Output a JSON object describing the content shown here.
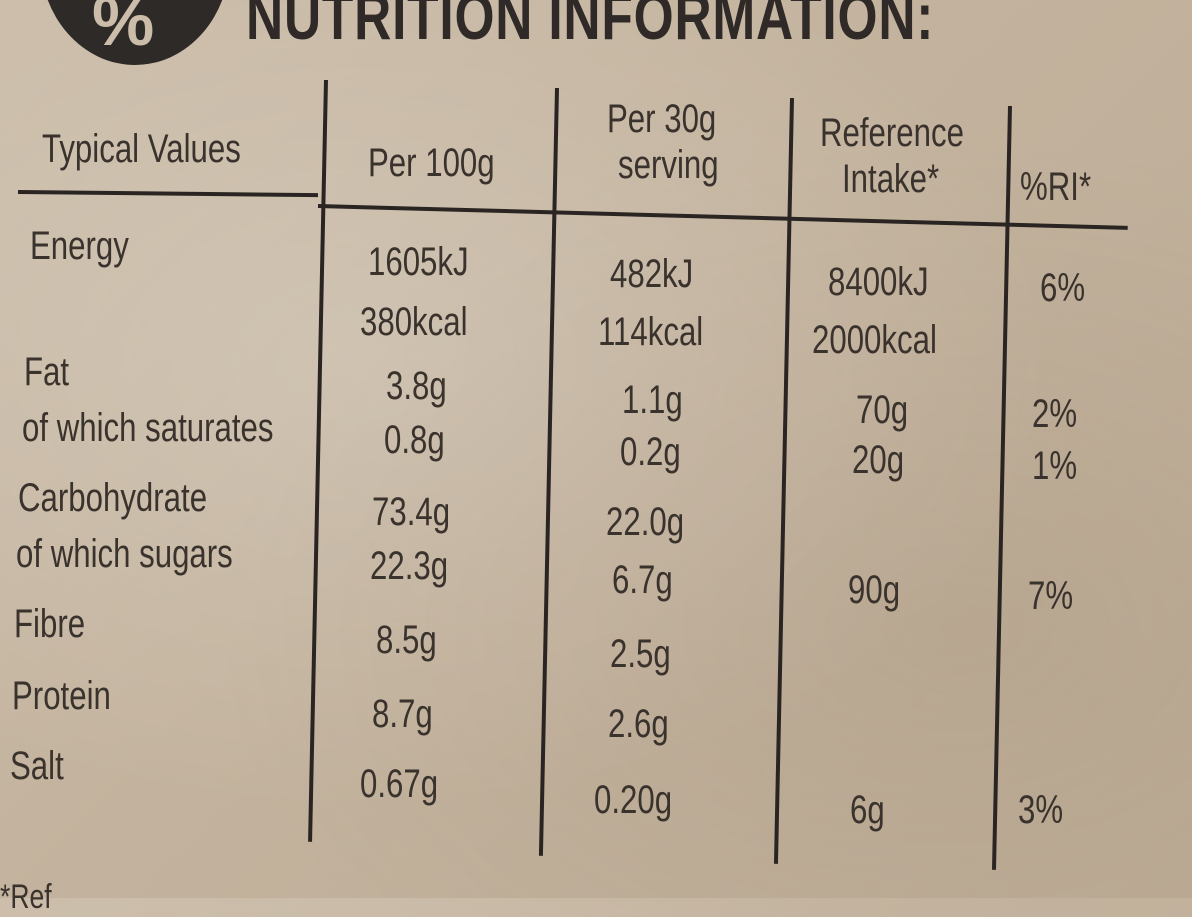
{
  "heading": "NUTRITION INFORMATION:",
  "badge_symbol": "%",
  "headers": {
    "typical": "Typical Values",
    "per100": "Per 100g",
    "per30_line1": "Per 30g",
    "per30_line2": "serving",
    "ri_line1": "Reference",
    "ri_line2": "Intake*",
    "pct": "%RI*"
  },
  "rows": {
    "energy": {
      "label": "Energy",
      "per100_kj": "1605kJ",
      "per100_kcal": "380kcal",
      "per30_kj": "482kJ",
      "per30_kcal": "114kcal",
      "ri_kj": "8400kJ",
      "ri_kcal": "2000kcal",
      "pct": "6%"
    },
    "fat": {
      "label": "Fat",
      "per100": "3.8g",
      "per30": "1.1g",
      "ri": "70g",
      "pct": "2%"
    },
    "saturates": {
      "label": "of which saturates",
      "per100": "0.8g",
      "per30": "0.2g",
      "ri": "20g",
      "pct": "1%"
    },
    "carb": {
      "label": "Carbohydrate",
      "per100": "73.4g",
      "per30": "22.0g"
    },
    "sugars": {
      "label": "of which sugars",
      "per100": "22.3g",
      "per30": "6.7g",
      "ri": "90g",
      "pct": "7%"
    },
    "fibre": {
      "label": "Fibre",
      "per100": "8.5g",
      "per30": "2.5g"
    },
    "protein": {
      "label": "Protein",
      "per100": "8.7g",
      "per30": "2.6g"
    },
    "salt": {
      "label": "Salt",
      "per100": "0.67g",
      "per30": "0.20g",
      "ri": "6g",
      "pct": "3%"
    }
  },
  "footnote": "*Ref"
}
